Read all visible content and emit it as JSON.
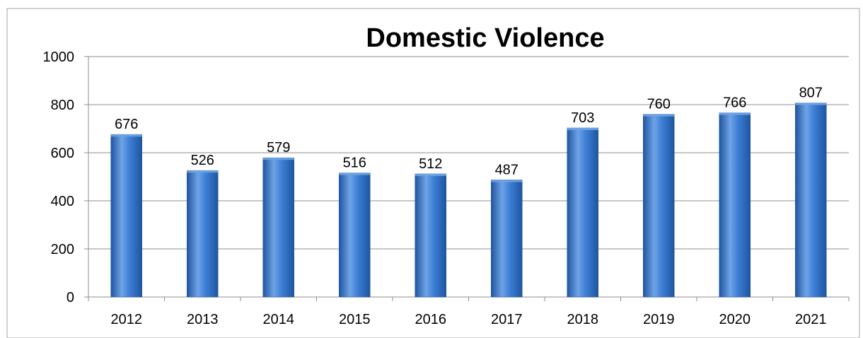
{
  "chart_data": {
    "type": "bar",
    "title": "Domestic Violence",
    "categories": [
      "2012",
      "2013",
      "2014",
      "2015",
      "2016",
      "2017",
      "2018",
      "2019",
      "2020",
      "2021"
    ],
    "values": [
      676,
      526,
      579,
      516,
      512,
      487,
      703,
      760,
      766,
      807
    ],
    "data_labels": [
      "676",
      "526",
      "579",
      "516",
      "512",
      "487",
      "703",
      "760",
      "766",
      "807"
    ],
    "yticks": [
      "0",
      "200",
      "400",
      "600",
      "800",
      "1000"
    ],
    "ytick_values": [
      0,
      200,
      400,
      600,
      800,
      1000
    ],
    "ylim": [
      0,
      1000
    ],
    "grid": true,
    "legend": "none",
    "colors": {
      "bar_light": "#6fa3e6",
      "bar_mid": "#3d7fd6",
      "bar_dark": "#1f55a0",
      "grid": "#8c8c8c",
      "axis": "#8c8c8c",
      "text": "#000000",
      "frame": "#a6a6a6"
    }
  }
}
